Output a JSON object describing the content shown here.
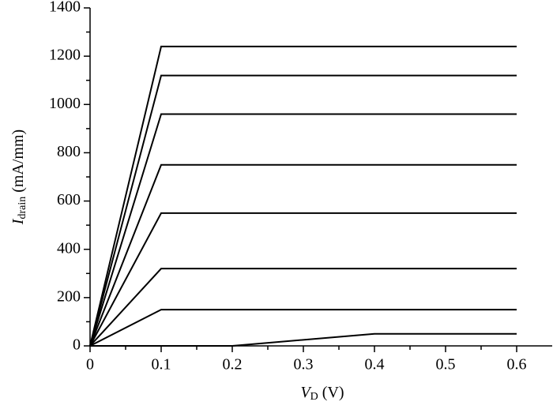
{
  "chart_data": {
    "type": "line",
    "xlabel": {
      "main": "V",
      "sub": "D",
      "unit": "(V)"
    },
    "ylabel": {
      "main": "I",
      "sub": "drain",
      "unit": "(mA/mm)"
    },
    "xlim": [
      0,
      0.65
    ],
    "ylim": [
      0,
      1400
    ],
    "xticks": [
      0,
      0.1,
      0.2,
      0.3,
      0.4,
      0.5,
      0.6
    ],
    "yticks": [
      0,
      200,
      400,
      600,
      800,
      1000,
      1200,
      1400
    ],
    "xminorticks": [
      0.05,
      0.15,
      0.25,
      0.35,
      0.45,
      0.55
    ],
    "yminorticks": [
      100,
      300,
      500,
      700,
      900,
      1100,
      1300
    ],
    "series": [
      {
        "color": "#000000",
        "x": [
          0,
          0.1,
          0.6
        ],
        "values": [
          0,
          1240,
          1240
        ]
      },
      {
        "color": "#000000",
        "x": [
          0,
          0.1,
          0.6
        ],
        "values": [
          0,
          1120,
          1120
        ]
      },
      {
        "color": "#000000",
        "x": [
          0,
          0.1,
          0.6
        ],
        "values": [
          0,
          960,
          960
        ]
      },
      {
        "color": "#000000",
        "x": [
          0,
          0.1,
          0.6
        ],
        "values": [
          0,
          750,
          750
        ]
      },
      {
        "color": "#000000",
        "x": [
          0,
          0.1,
          0.6
        ],
        "values": [
          0,
          550,
          550
        ]
      },
      {
        "color": "#000000",
        "x": [
          0,
          0.1,
          0.6
        ],
        "values": [
          0,
          320,
          320
        ]
      },
      {
        "color": "#000000",
        "x": [
          0,
          0.1,
          0.6
        ],
        "values": [
          0,
          150,
          150
        ]
      },
      {
        "color": "#000000",
        "x": [
          0,
          0.2,
          0.4,
          0.6
        ],
        "values": [
          0,
          0,
          50,
          50
        ]
      }
    ]
  }
}
